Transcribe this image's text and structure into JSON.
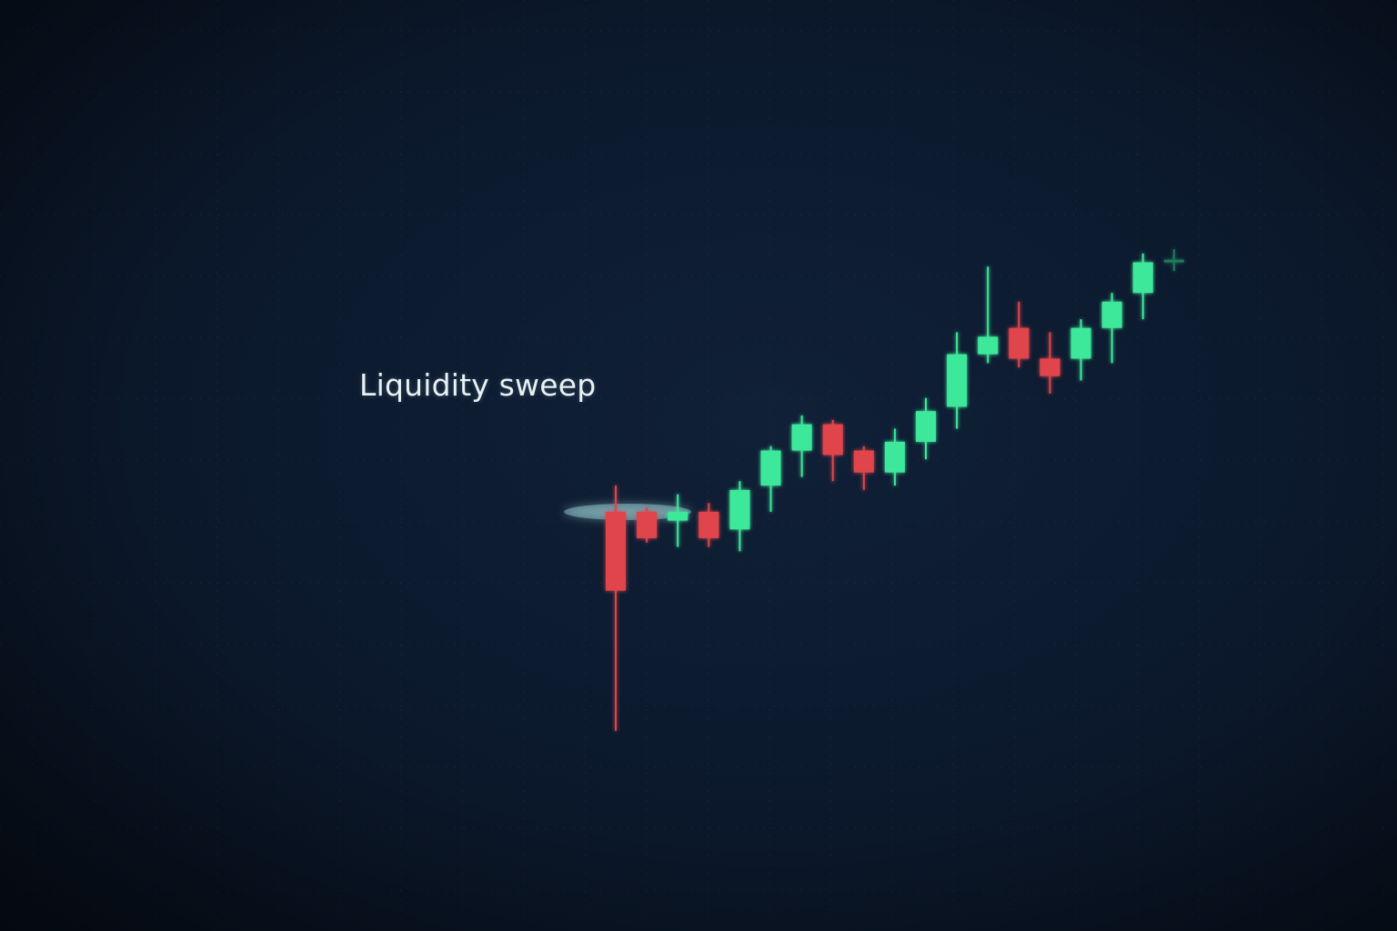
{
  "chart_data": {
    "type": "candlestick",
    "grid": true,
    "annotation": {
      "text": "Liquidity sweep",
      "level": 100
    },
    "colors": {
      "background": "#0b1628",
      "up": "#3ee89a",
      "down": "#e0444c",
      "level_line": "#3ff0e6",
      "grid_dot": "#3a6b72"
    },
    "ylim": [
      65,
      146
    ],
    "candles": [
      {
        "open": 100,
        "high": 103,
        "low": 75,
        "close": 91
      },
      {
        "open": 100,
        "high": 100.5,
        "low": 96.5,
        "close": 97
      },
      {
        "open": 99,
        "high": 102,
        "low": 96,
        "close": 100
      },
      {
        "open": 100,
        "high": 101,
        "low": 96,
        "close": 97
      },
      {
        "open": 98,
        "high": 103.5,
        "low": 95.5,
        "close": 102.5
      },
      {
        "open": 103,
        "high": 107.5,
        "low": 100,
        "close": 107
      },
      {
        "open": 107,
        "high": 111,
        "low": 104,
        "close": 110
      },
      {
        "open": 110,
        "high": 110.5,
        "low": 103.5,
        "close": 106.5
      },
      {
        "open": 107,
        "high": 107.5,
        "low": 102.5,
        "close": 104.5
      },
      {
        "open": 104.5,
        "high": 109.5,
        "low": 103,
        "close": 108
      },
      {
        "open": 108,
        "high": 113,
        "low": 106,
        "close": 111.5
      },
      {
        "open": 112,
        "high": 120.5,
        "low": 109.5,
        "close": 118
      },
      {
        "open": 118,
        "high": 128,
        "low": 117,
        "close": 120
      },
      {
        "open": 121,
        "high": 124,
        "low": 116.5,
        "close": 117.5
      },
      {
        "open": 117.5,
        "high": 120.5,
        "low": 113.5,
        "close": 115.5
      },
      {
        "open": 117.5,
        "high": 122,
        "low": 115,
        "close": 121
      },
      {
        "open": 121,
        "high": 125,
        "low": 117,
        "close": 124
      },
      {
        "open": 125,
        "high": 129.5,
        "low": 122,
        "close": 128.5
      },
      {
        "open": 128.5,
        "high": 130,
        "low": 127.5,
        "close": 128.8
      }
    ]
  }
}
